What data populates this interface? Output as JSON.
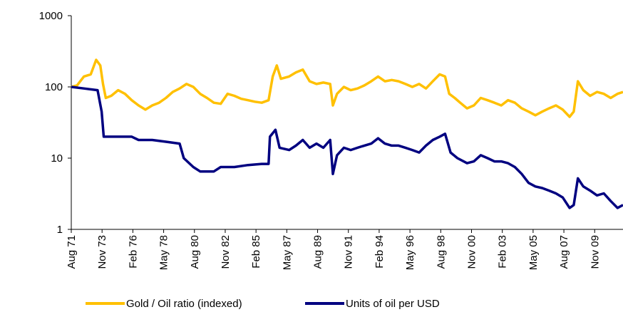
{
  "chart_data": {
    "type": "line",
    "log_y": true,
    "ylim": [
      1,
      1000
    ],
    "yticks": [
      1,
      10,
      100,
      1000
    ],
    "xlim": [
      1971.58,
      2011.9
    ],
    "xticks": [
      {
        "value": 1971.58,
        "label": "Aug 71"
      },
      {
        "value": 1973.83,
        "label": "Nov 73"
      },
      {
        "value": 1976.08,
        "label": "Feb 76"
      },
      {
        "value": 1978.33,
        "label": "May 78"
      },
      {
        "value": 1980.58,
        "label": "Aug 80"
      },
      {
        "value": 1982.83,
        "label": "Nov 82"
      },
      {
        "value": 1985.08,
        "label": "Feb 85"
      },
      {
        "value": 1987.33,
        "label": "May 87"
      },
      {
        "value": 1989.58,
        "label": "Aug 89"
      },
      {
        "value": 1991.83,
        "label": "Nov 91"
      },
      {
        "value": 1994.08,
        "label": "Feb 94"
      },
      {
        "value": 1996.33,
        "label": "May 96"
      },
      {
        "value": 1998.58,
        "label": "Aug 98"
      },
      {
        "value": 2000.83,
        "label": "Nov 00"
      },
      {
        "value": 2003.08,
        "label": "Feb 03"
      },
      {
        "value": 2005.33,
        "label": "May 05"
      },
      {
        "value": 2007.58,
        "label": "Aug 07"
      },
      {
        "value": 2009.83,
        "label": "Nov 09"
      }
    ],
    "series": [
      {
        "name": "Gold / Oil ratio (indexed)",
        "color": "#ffc000",
        "x": [
          1971.58,
          1972.0,
          1972.5,
          1973.0,
          1973.4,
          1973.7,
          1973.9,
          1974.1,
          1974.5,
          1975.0,
          1975.5,
          1976.0,
          1976.5,
          1977.0,
          1977.5,
          1978.0,
          1978.5,
          1979.0,
          1979.5,
          1980.0,
          1980.5,
          1981.0,
          1981.5,
          1982.0,
          1982.5,
          1983.0,
          1983.5,
          1984.0,
          1984.5,
          1985.0,
          1985.5,
          1986.0,
          1986.3,
          1986.6,
          1986.9,
          1987.5,
          1988.0,
          1988.5,
          1989.0,
          1989.5,
          1990.0,
          1990.5,
          1990.7,
          1991.0,
          1991.5,
          1992.0,
          1992.5,
          1993.0,
          1993.5,
          1994.0,
          1994.5,
          1995.0,
          1995.5,
          1996.0,
          1996.5,
          1997.0,
          1997.5,
          1998.0,
          1998.5,
          1998.9,
          1999.2,
          1999.6,
          2000.0,
          2000.5,
          2001.0,
          2001.5,
          2002.0,
          2002.5,
          2003.0,
          2003.5,
          2004.0,
          2004.5,
          2005.0,
          2005.5,
          2006.0,
          2006.5,
          2007.0,
          2007.5,
          2008.0,
          2008.3,
          2008.6,
          2009.0,
          2009.5,
          2010.0,
          2010.5,
          2011.0,
          2011.5,
          2011.9
        ],
        "values": [
          100,
          105,
          140,
          150,
          240,
          200,
          110,
          70,
          75,
          90,
          80,
          65,
          55,
          48,
          55,
          60,
          70,
          85,
          95,
          110,
          100,
          80,
          70,
          60,
          58,
          80,
          75,
          68,
          65,
          62,
          60,
          65,
          140,
          200,
          130,
          140,
          160,
          175,
          120,
          110,
          115,
          110,
          55,
          80,
          100,
          90,
          95,
          105,
          120,
          140,
          120,
          125,
          120,
          110,
          100,
          110,
          95,
          120,
          150,
          140,
          80,
          70,
          60,
          50,
          55,
          70,
          65,
          60,
          55,
          65,
          60,
          50,
          45,
          40,
          45,
          50,
          55,
          48,
          38,
          45,
          120,
          90,
          75,
          85,
          80,
          70,
          80,
          85
        ]
      },
      {
        "name": "Units of oil per USD",
        "color": "#000080",
        "x": [
          1971.58,
          1972.5,
          1973.5,
          1973.8,
          1973.95,
          1975.0,
          1976.0,
          1976.5,
          1977.5,
          1978.5,
          1979.5,
          1979.8,
          1980.5,
          1981.0,
          1982.0,
          1982.5,
          1983.5,
          1984.5,
          1985.5,
          1986.0,
          1986.1,
          1986.5,
          1986.8,
          1987.5,
          1988.0,
          1988.5,
          1989.0,
          1989.5,
          1990.0,
          1990.5,
          1990.7,
          1991.0,
          1991.5,
          1992.0,
          1992.5,
          1993.0,
          1993.5,
          1994.0,
          1994.5,
          1995.0,
          1995.5,
          1996.0,
          1996.5,
          1997.0,
          1997.5,
          1998.0,
          1998.5,
          1998.9,
          1999.3,
          1999.8,
          2000.5,
          2001.0,
          2001.5,
          2002.0,
          2002.5,
          2003.0,
          2003.5,
          2004.0,
          2004.5,
          2005.0,
          2005.5,
          2006.0,
          2006.5,
          2007.0,
          2007.5,
          2008.0,
          2008.3,
          2008.6,
          2009.0,
          2009.5,
          2010.0,
          2010.5,
          2011.0,
          2011.5,
          2011.9
        ],
        "values": [
          100,
          95,
          90,
          45,
          20,
          20,
          20,
          18,
          18,
          17,
          16,
          10,
          7.5,
          6.5,
          6.5,
          7.5,
          7.5,
          8,
          8.3,
          8.3,
          20,
          25,
          14,
          13,
          15,
          18,
          14,
          16,
          14,
          18,
          6,
          11,
          14,
          13,
          14,
          15,
          16,
          19,
          16,
          15,
          15,
          14,
          13,
          12,
          15,
          18,
          20,
          22,
          12,
          10,
          8.5,
          9,
          11,
          10,
          9,
          9,
          8.5,
          7.5,
          6,
          4.5,
          4,
          3.8,
          3.5,
          3.2,
          2.8,
          2,
          2.2,
          5.2,
          4,
          3.5,
          3,
          3.2,
          2.5,
          2,
          2.2
        ]
      }
    ]
  }
}
